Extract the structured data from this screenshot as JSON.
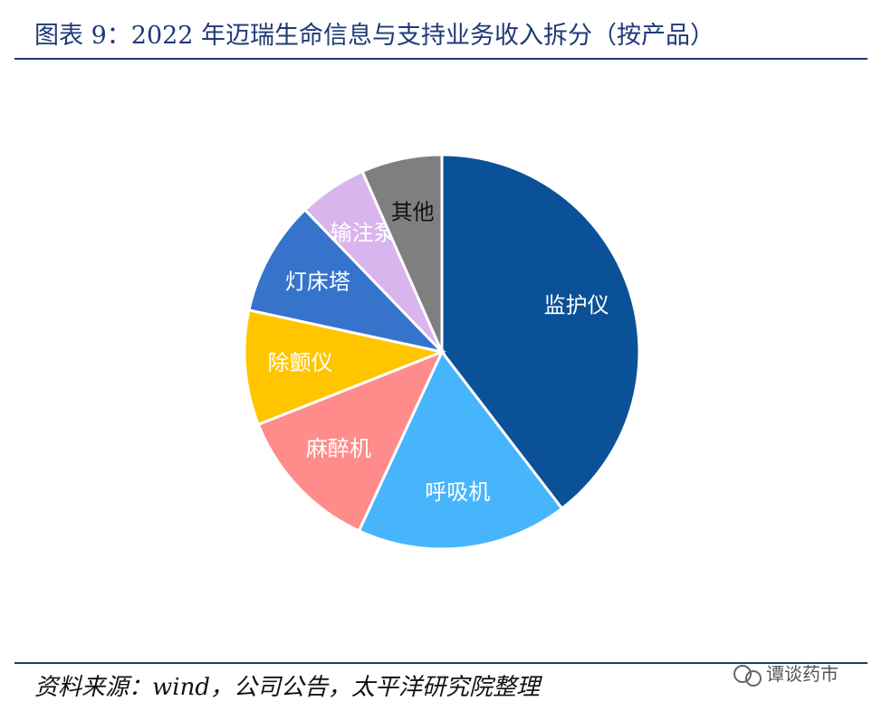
{
  "chart_data": {
    "type": "pie",
    "title": "图表 9：2022 年迈瑞生命信息与支持业务收入拆分（按产品）",
    "source": "资料来源：wind，公司公告，太平洋研究院整理",
    "categories": [
      "监护仪",
      "呼吸机",
      "麻醉机",
      "除颤仪",
      "灯床塔",
      "输注泵",
      "其他"
    ],
    "values": [
      39.6,
      17.3,
      12.1,
      9.4,
      9.4,
      5.6,
      6.6
    ],
    "colors": [
      "#0b5197",
      "#47b5fb",
      "#ff8b8b",
      "#ffc600",
      "#3674cc",
      "#d9b5ee",
      "#7f7f7f"
    ],
    "label_colors": [
      "#ffffff",
      "#ffffff",
      "#ffffff",
      "#ffffff",
      "#ffffff",
      "#ffffff",
      "#111111"
    ]
  },
  "watermark": "谭谈药市"
}
